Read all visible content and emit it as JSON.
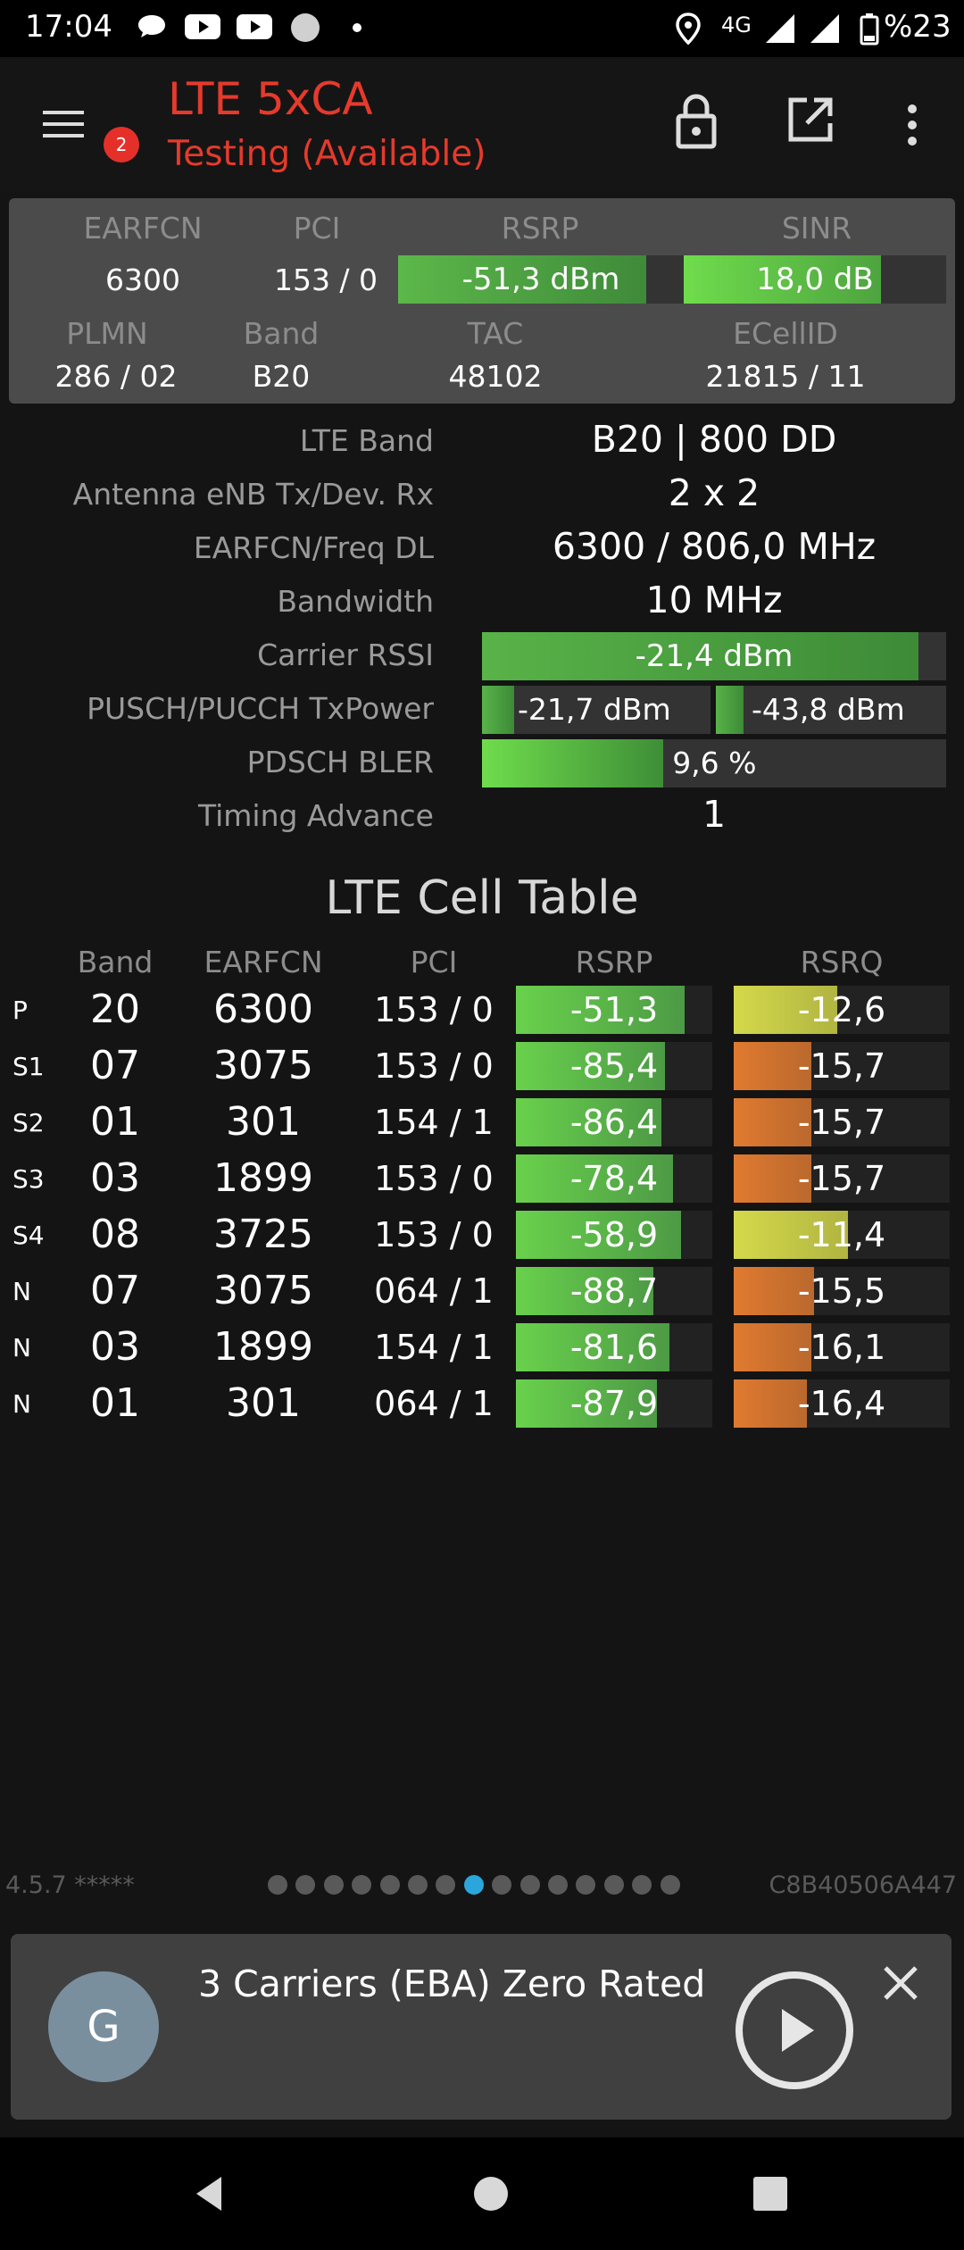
{
  "status_bar": {
    "time": "17:04",
    "network": "4G",
    "battery": "%23"
  },
  "app_bar": {
    "title": "LTE 5xCA",
    "subtitle": "Testing (Available)",
    "menu_badge": "2",
    "title_color": "#e53a2c"
  },
  "summary": {
    "headers": {
      "earfcn": "EARFCN",
      "pci": "PCI",
      "rsrp": "RSRP",
      "sinr": "SINR",
      "plmn": "PLMN",
      "band": "Band",
      "tac": "TAC",
      "ecellid": "ECellID"
    },
    "earfcn": "6300",
    "pci": "153 / 0",
    "rsrp": "-51,3 dBm",
    "rsrp_fill": 0.87,
    "sinr": "18,0 dB",
    "sinr_fill": 0.75,
    "plmn": "286 / 02",
    "band": "B20",
    "tac": "48102",
    "ecellid": "21815 / 11"
  },
  "details": {
    "lte_band_label": "LTE Band",
    "lte_band": "B20 | 800 DD",
    "antenna_label": "Antenna eNB Tx/Dev. Rx",
    "antenna": "2 x 2",
    "freq_label": "EARFCN/Freq DL",
    "freq": "6300 / 806,0 MHz",
    "bandwidth_label": "Bandwidth",
    "bandwidth": "10 MHz",
    "rssi_label": "Carrier RSSI",
    "rssi": "-21,4 dBm",
    "rssi_fill": 0.94,
    "txpower_label": "PUSCH/PUCCH TxPower",
    "pusch": "-21,7 dBm",
    "pusch_fill": 0.14,
    "pucch": "-43,8 dBm",
    "pucch_fill": 0.12,
    "bler_label": "PDSCH BLER",
    "bler": "9,6 %",
    "bler_fill": 0.39,
    "ta_label": "Timing Advance",
    "ta": "1"
  },
  "cell_table": {
    "title": "LTE Cell Table",
    "headers": {
      "band": "Band",
      "earfcn": "EARFCN",
      "pci": "PCI",
      "rsrp": "RSRP",
      "rsrq": "RSRQ"
    },
    "rows": [
      {
        "type": "P",
        "band": "20",
        "earfcn": "6300",
        "pci": "153 / 0",
        "rsrp": "-51,3",
        "rsrp_fill": 0.86,
        "rsrq": "-12,6",
        "rsrq_fill": 0.48,
        "rsrq_color": "yellow"
      },
      {
        "type": "S1",
        "band": "07",
        "earfcn": "3075",
        "pci": "153 / 0",
        "rsrp": "-85,4",
        "rsrp_fill": 0.76,
        "rsrq": "-15,7",
        "rsrq_fill": 0.36,
        "rsrq_color": "orange"
      },
      {
        "type": "S2",
        "band": "01",
        "earfcn": "301",
        "pci": "154 / 1",
        "rsrp": "-86,4",
        "rsrp_fill": 0.74,
        "rsrq": "-15,7",
        "rsrq_fill": 0.36,
        "rsrq_color": "orange"
      },
      {
        "type": "S3",
        "band": "03",
        "earfcn": "1899",
        "pci": "153 / 0",
        "rsrp": "-78,4",
        "rsrp_fill": 0.8,
        "rsrq": "-15,7",
        "rsrq_fill": 0.36,
        "rsrq_color": "orange"
      },
      {
        "type": "S4",
        "band": "08",
        "earfcn": "3725",
        "pci": "153 / 0",
        "rsrp": "-58,9",
        "rsrp_fill": 0.84,
        "rsrq": "-11,4",
        "rsrq_fill": 0.53,
        "rsrq_color": "yellow"
      },
      {
        "type": "N",
        "band": "07",
        "earfcn": "3075",
        "pci": "064 / 1",
        "rsrp": "-88,7",
        "rsrp_fill": 0.7,
        "rsrq": "-15,5",
        "rsrq_fill": 0.37,
        "rsrq_color": "orange"
      },
      {
        "type": "N",
        "band": "03",
        "earfcn": "1899",
        "pci": "154 / 1",
        "rsrp": "-81,6",
        "rsrp_fill": 0.78,
        "rsrq": "-16,1",
        "rsrq_fill": 0.36,
        "rsrq_color": "orange"
      },
      {
        "type": "N",
        "band": "01",
        "earfcn": "301",
        "pci": "064 / 1",
        "rsrp": "-87,9",
        "rsrp_fill": 0.72,
        "rsrq": "-16,4",
        "rsrq_fill": 0.34,
        "rsrq_color": "orange"
      }
    ]
  },
  "footer": {
    "version": "4.5.7 *****",
    "device_id": "C8B40506A447",
    "page_count": 15,
    "active_page": 7
  },
  "notification": {
    "avatar_letter": "G",
    "text": "3 Carriers (EBA) Zero Rated"
  },
  "colors": {
    "green_dark": "#4d9a45",
    "green_light": "#69d14c",
    "yellow": "#d4d94a",
    "orange": "#e07a30",
    "accent_blue": "#2aa6dc"
  }
}
